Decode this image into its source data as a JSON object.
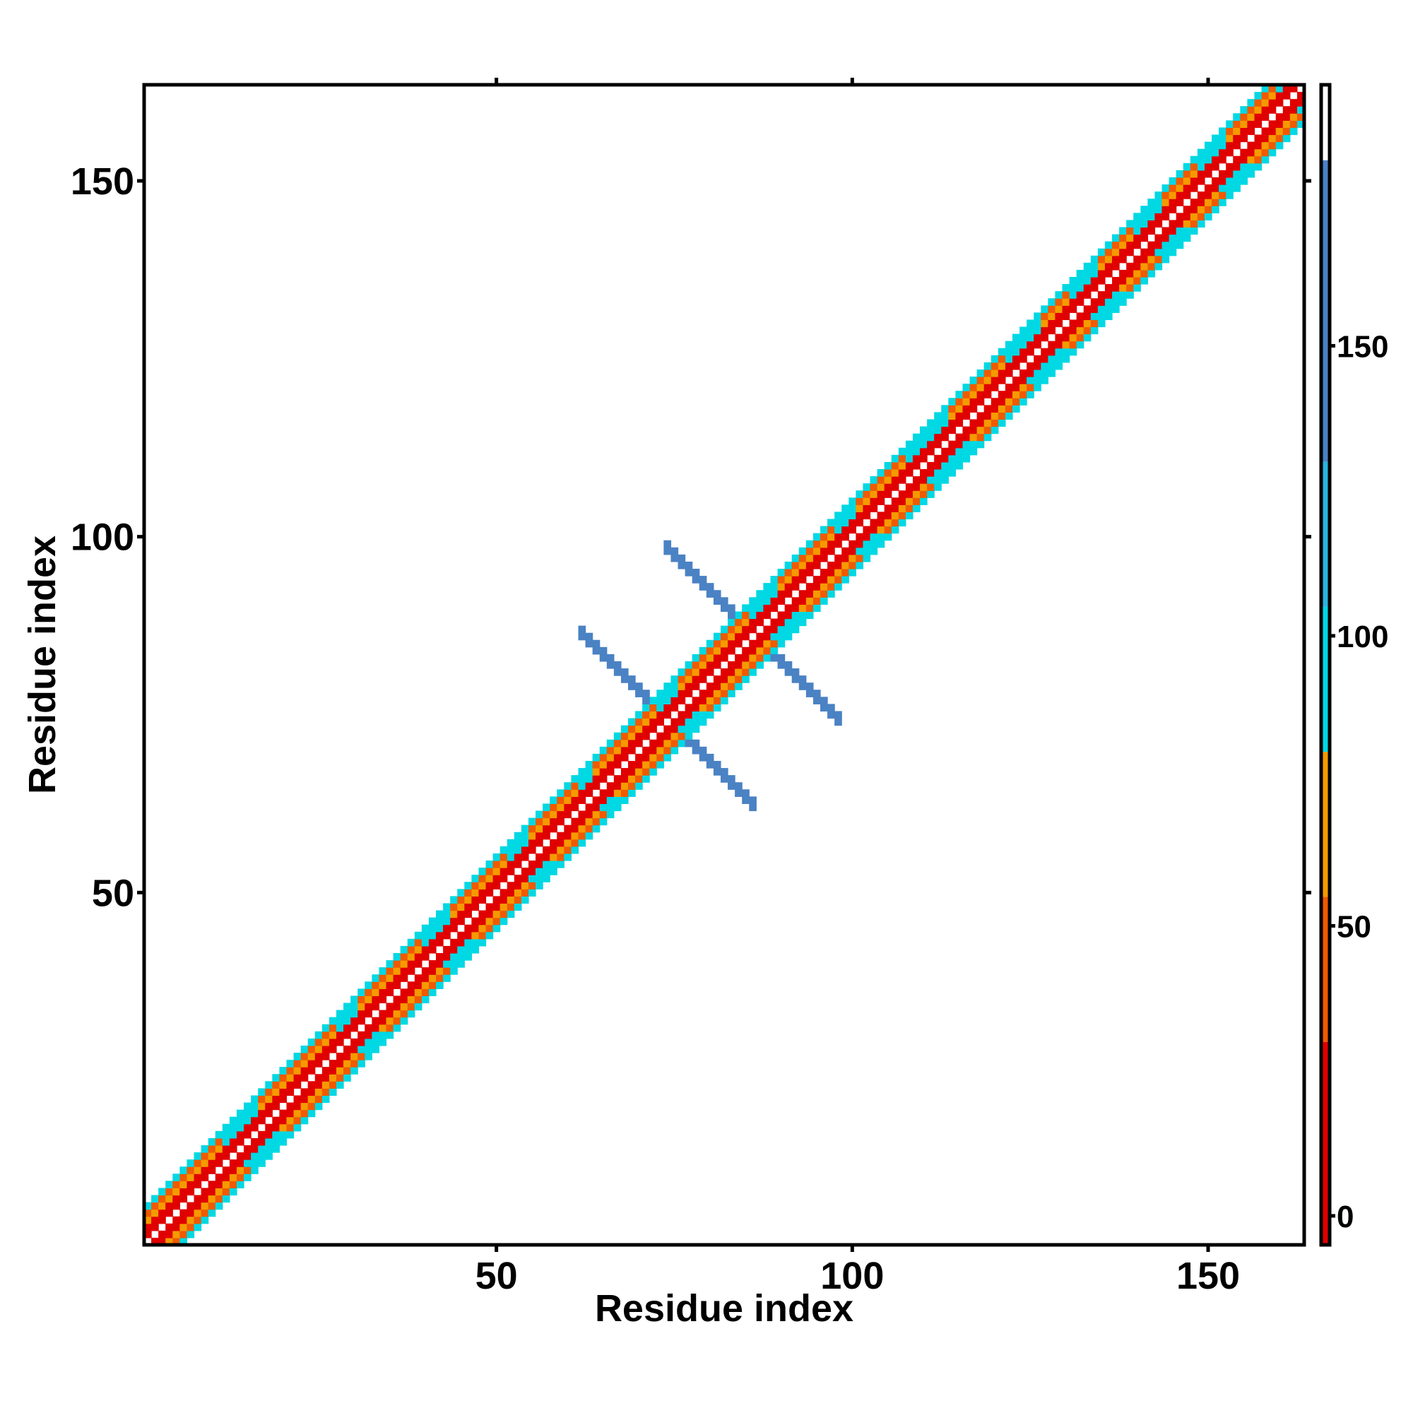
{
  "chart_data": {
    "type": "heatmap",
    "title": "",
    "xlabel": "Residue index",
    "ylabel": "Residue index",
    "xlim": [
      0.5,
      163.5
    ],
    "ylim": [
      0.5,
      163.5
    ],
    "x_ticks": [
      50,
      100,
      150
    ],
    "y_ticks": [
      50,
      100,
      150
    ],
    "colorbar": {
      "range": [
        -5,
        195
      ],
      "ticks": [
        0,
        50,
        100,
        150
      ],
      "bands": [
        {
          "from": -5,
          "to": 30,
          "color": "#e00000"
        },
        {
          "from": 30,
          "to": 55,
          "color": "#f05a00"
        },
        {
          "from": 55,
          "to": 80,
          "color": "#f59a00"
        },
        {
          "from": 80,
          "to": 105,
          "color": "#00d8e4"
        },
        {
          "from": 105,
          "to": 130,
          "color": "#2ab4dc"
        },
        {
          "from": 130,
          "to": 182,
          "color": "#4a82c4"
        },
        {
          "from": 182,
          "to": 195,
          "color": "#ffffff"
        }
      ]
    },
    "n_residues": 163,
    "diagonal_band": {
      "offset_values": {
        "1": 10,
        "2": 25,
        "3": 60,
        "4": 40,
        "5": 90
      },
      "helix_regions": [
        [
          12,
          16
        ],
        [
          28,
          30
        ],
        [
          40,
          43
        ],
        [
          52,
          54
        ],
        [
          62,
          63
        ],
        [
          73,
          75
        ],
        [
          86,
          89
        ],
        [
          98,
          100
        ],
        [
          108,
          113
        ],
        [
          122,
          126
        ],
        [
          131,
          134
        ],
        [
          140,
          143
        ],
        [
          149,
          152
        ],
        [
          160,
          163
        ]
      ]
    },
    "cross_regions": [
      {
        "center": 74,
        "half_length": 12,
        "value": 165
      },
      {
        "center": 86,
        "half_length": 12,
        "value": 165
      }
    ]
  }
}
